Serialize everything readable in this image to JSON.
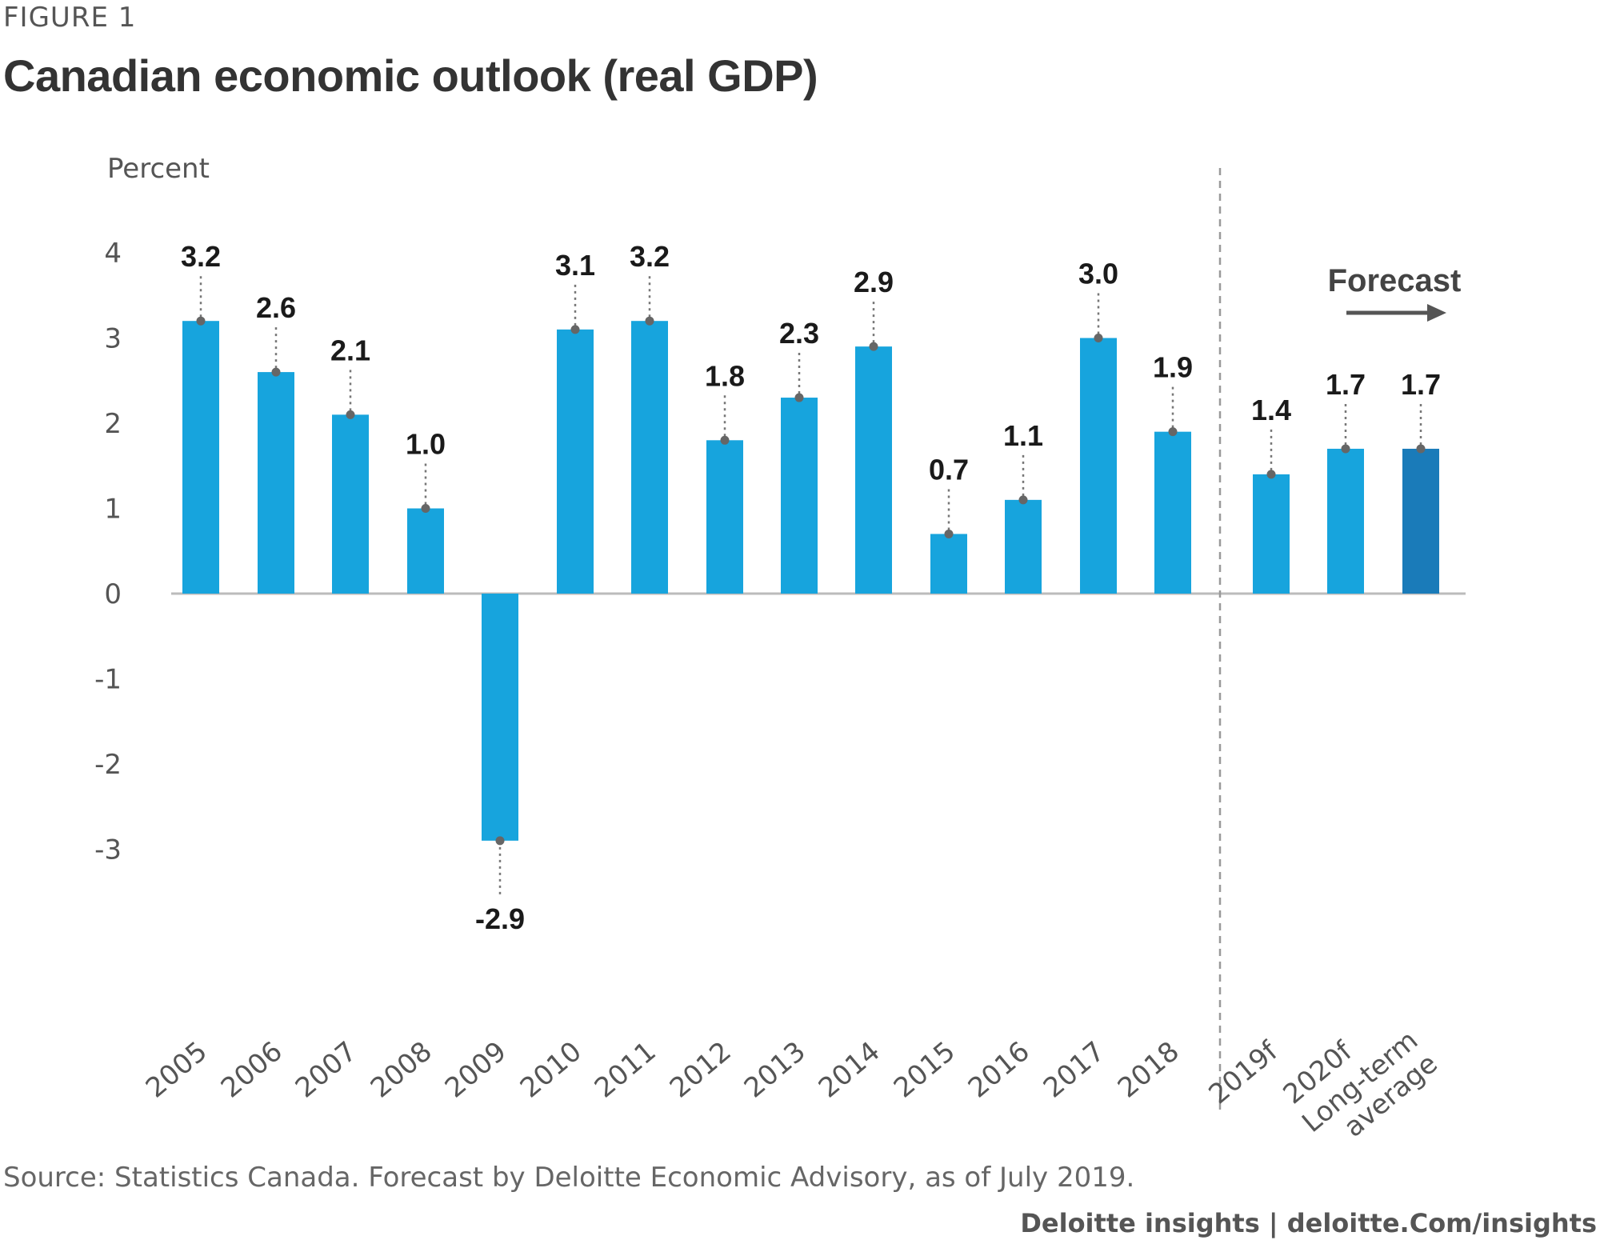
{
  "figure_label": "FIGURE 1",
  "title": "Canadian economic outlook (real GDP)",
  "source": "Source: Statistics Canada. Forecast by Deloitte Economic Advisory, as of July 2019.",
  "credit": "Deloitte insights | deloitte.Com/insights",
  "colors": {
    "bar": "#17a4dd",
    "bar_highlight": "#1a7bb9",
    "axis": "#bbbbbb",
    "marker": "#666666"
  },
  "chart_data": {
    "type": "bar",
    "title": "Canadian economic outlook (real GDP)",
    "ylabel": "Percent",
    "xlabel": "",
    "ylim": [
      -3,
      4
    ],
    "yticks": [
      "4",
      "3",
      "2",
      "1",
      "0",
      "-1",
      "-2",
      "-3"
    ],
    "ytick_values": [
      4,
      3,
      2,
      1,
      0,
      -1,
      -2,
      -3
    ],
    "categories": [
      "2005",
      "2006",
      "2007",
      "2008",
      "2009",
      "2010",
      "2011",
      "2012",
      "2013",
      "2014",
      "2015",
      "2016",
      "2017",
      "2018",
      "2019f",
      "2020f",
      "Long-term average"
    ],
    "category_lines": [
      [
        "2005"
      ],
      [
        "2006"
      ],
      [
        "2007"
      ],
      [
        "2008"
      ],
      [
        "2009"
      ],
      [
        "2010"
      ],
      [
        "2011"
      ],
      [
        "2012"
      ],
      [
        "2013"
      ],
      [
        "2014"
      ],
      [
        "2015"
      ],
      [
        "2016"
      ],
      [
        "2017"
      ],
      [
        "2018"
      ],
      [
        "2019f"
      ],
      [
        "2020f"
      ],
      [
        "Long-term",
        "average"
      ]
    ],
    "values": [
      3.2,
      2.6,
      2.1,
      1.0,
      -2.9,
      3.1,
      3.2,
      1.8,
      2.3,
      2.9,
      0.7,
      1.1,
      3.0,
      1.9,
      1.4,
      1.7,
      1.7
    ],
    "value_labels": [
      "3.2",
      "2.6",
      "2.1",
      "1.0",
      "-2.9",
      "3.1",
      "3.2",
      "1.8",
      "2.3",
      "2.9",
      "0.7",
      "1.1",
      "3.0",
      "1.9",
      "1.4",
      "1.7",
      "1.7"
    ],
    "highlight": [
      false,
      false,
      false,
      false,
      false,
      false,
      false,
      false,
      false,
      false,
      false,
      false,
      false,
      false,
      false,
      false,
      true
    ],
    "forecast_divider_after": "2018",
    "forecast_label": "Forecast"
  }
}
